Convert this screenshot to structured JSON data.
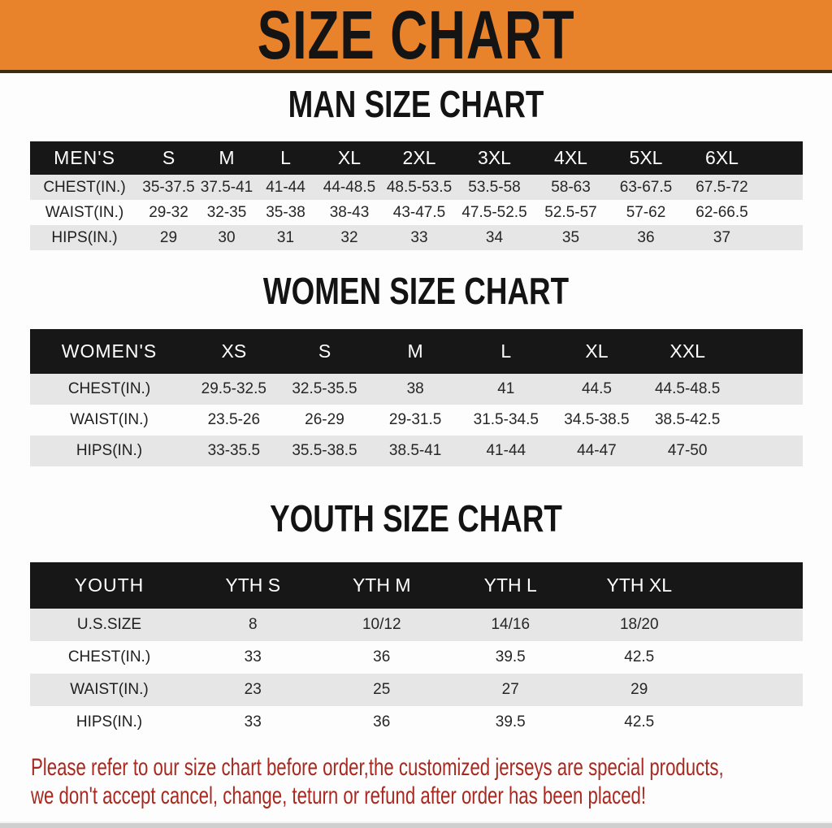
{
  "banner": {
    "title": "SIZE CHART"
  },
  "colors": {
    "banner_orange": "#E8822B",
    "header_black": "#171717",
    "row_gray": "#E6E6E6",
    "notice_red": "#A8291F"
  },
  "sections": [
    {
      "heading": "MAN SIZE CHART",
      "table": {
        "header_label": "MEN'S",
        "columns": [
          "S",
          "M",
          "L",
          "XL",
          "2XL",
          "3XL",
          "4XL",
          "5XL",
          "6XL"
        ],
        "rows": [
          {
            "label": "CHEST(IN.)",
            "values": [
              "35-37.5",
              "37.5-41",
              "41-44",
              "44-48.5",
              "48.5-53.5",
              "53.5-58",
              "58-63",
              "63-67.5",
              "67.5-72"
            ]
          },
          {
            "label": "WAIST(IN.)",
            "values": [
              "29-32",
              "32-35",
              "35-38",
              "38-43",
              "43-47.5",
              "47.5-52.5",
              "52.5-57",
              "57-62",
              "62-66.5"
            ]
          },
          {
            "label": "HIPS(IN.)",
            "values": [
              "29",
              "30",
              "31",
              "32",
              "33",
              "34",
              "35",
              "36",
              "37"
            ]
          }
        ]
      }
    },
    {
      "heading": "WOMEN SIZE CHART",
      "table": {
        "header_label": "WOMEN'S",
        "columns": [
          "XS",
          "S",
          "M",
          "L",
          "XL",
          "XXL"
        ],
        "rows": [
          {
            "label": "CHEST(IN.)",
            "values": [
              "29.5-32.5",
              "32.5-35.5",
              "38",
              "41",
              "44.5",
              "44.5-48.5"
            ]
          },
          {
            "label": "WAIST(IN.)",
            "values": [
              "23.5-26",
              "26-29",
              "29-31.5",
              "31.5-34.5",
              "34.5-38.5",
              "38.5-42.5"
            ]
          },
          {
            "label": "HIPS(IN.)",
            "values": [
              "33-35.5",
              "35.5-38.5",
              "38.5-41",
              "41-44",
              "44-47",
              "47-50"
            ]
          }
        ]
      }
    },
    {
      "heading": "YOUTH SIZE CHART",
      "table": {
        "header_label": "YOUTH",
        "columns": [
          "YTH S",
          "YTH M",
          "YTH L",
          "YTH XL"
        ],
        "rows": [
          {
            "label": "U.S.SIZE",
            "values": [
              "8",
              "10/12",
              "14/16",
              "18/20"
            ]
          },
          {
            "label": "CHEST(IN.)",
            "values": [
              "33",
              "36",
              "39.5",
              "42.5"
            ]
          },
          {
            "label": "WAIST(IN.)",
            "values": [
              "23",
              "25",
              "27",
              "29"
            ]
          },
          {
            "label": "HIPS(IN.)",
            "values": [
              "33",
              "36",
              "39.5",
              "42.5"
            ]
          }
        ]
      }
    }
  ],
  "footer": {
    "line1": "Please refer to our size chart before order,the customized jerseys are special products,",
    "line2": "we don't accept cancel, change, teturn or refund after order has been placed!"
  }
}
